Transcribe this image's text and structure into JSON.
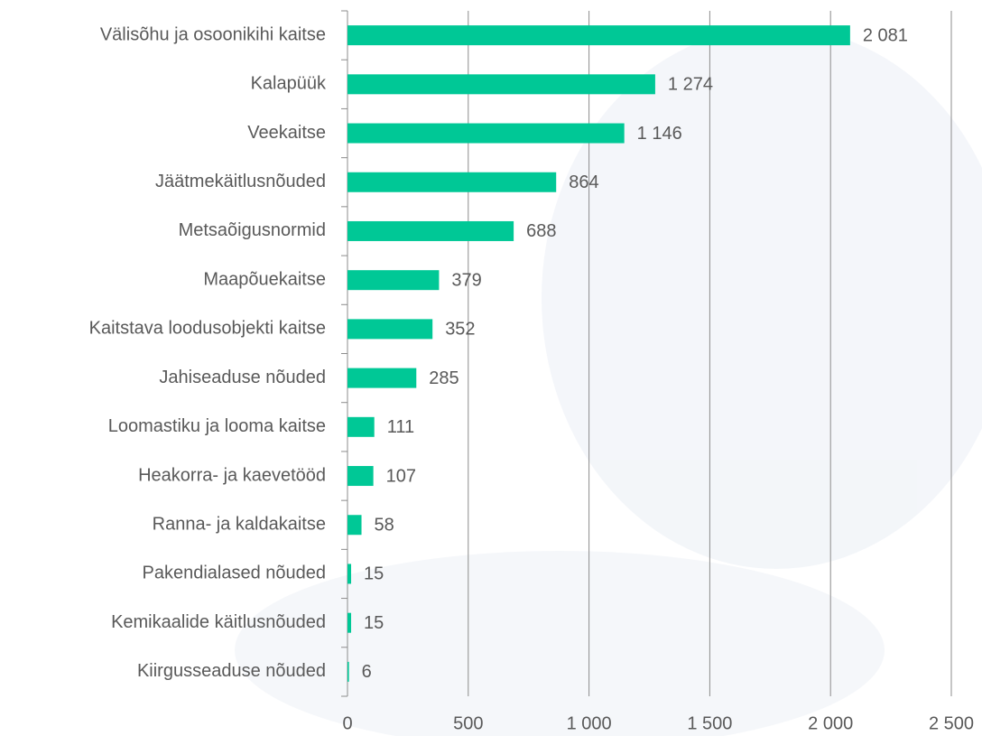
{
  "chart_data": {
    "type": "barh",
    "categories": [
      "Välisõhu ja osoonikihi kaitse",
      "Kalapüük",
      "Veekaitse",
      "Jäätmekäitlusnõuded",
      "Metsaõigusnormid",
      "Maapõuekaitse",
      "Kaitstava loodusobjekti kaitse",
      "Jahiseaduse nõuded",
      "Loomastiku ja looma kaitse",
      "Heakorra- ja kaevetööd",
      "Ranna- ja kaldakaitse",
      "Pakendialased nõuded",
      "Kemikaalide käitlusnõuded",
      "Kiirgusseaduse nõuded"
    ],
    "values": [
      2081,
      1274,
      1146,
      864,
      688,
      379,
      352,
      285,
      111,
      107,
      58,
      15,
      15,
      6
    ],
    "value_labels": [
      "2 081",
      "1 274",
      "1 146",
      "864",
      "688",
      "379",
      "352",
      "285",
      "111",
      "107",
      "58",
      "15",
      "15",
      "6"
    ],
    "color": "#00c896",
    "xlim": [
      0,
      2500
    ],
    "xticks": [
      0,
      500,
      {
        "value": 1000,
        "label": "1 000"
      },
      {
        "value": 1500,
        "label": "1 500"
      },
      {
        "value": 2000,
        "label": "2 000"
      },
      {
        "value": 2500,
        "label": "2 500"
      }
    ],
    "grid": true
  }
}
